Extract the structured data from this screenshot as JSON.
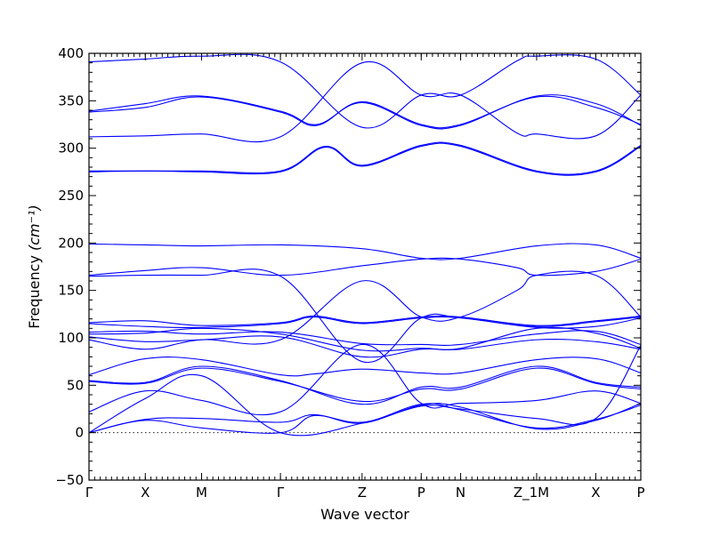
{
  "chart_data": {
    "type": "line",
    "title": "",
    "xlabel": "Wave vector",
    "ylabel_text": "Frequency",
    "ylabel_unit": "(cm⁻¹)",
    "ylim": [
      -50,
      400
    ],
    "yticks": [
      -50,
      0,
      50,
      100,
      150,
      200,
      250,
      300,
      350,
      400
    ],
    "zero_line": true,
    "grid": false,
    "line_color": "#0000ff",
    "segments": [
      {
        "from": "Γ",
        "to": "X",
        "x0": 0,
        "x1": 1
      },
      {
        "from": "X",
        "to": "M",
        "x0": 1,
        "x1": 2
      },
      {
        "from": "M",
        "to": "Γ",
        "x0": 2,
        "x1": 3.4
      },
      {
        "from": "Γ",
        "to": "Z",
        "x0": 3.4,
        "x1": 4.85
      },
      {
        "from": "Z",
        "to": "P",
        "x0": 4.85,
        "x1": 5.9
      },
      {
        "from": "P",
        "to": "N",
        "x0": 5.9,
        "x1": 6.6
      },
      {
        "from": "N",
        "to": "Z_1",
        "x0": 6.6,
        "x1": 7.6
      },
      {
        "from": "M",
        "to": "X",
        "x0": 7.95,
        "x1": 9.0
      },
      {
        "from": "X",
        "to": "P",
        "x0": 9.0,
        "x1": 9.8
      }
    ],
    "xticks": [
      {
        "label": "Γ",
        "x": 0
      },
      {
        "label": "X",
        "x": 1
      },
      {
        "label": "M",
        "x": 2
      },
      {
        "label": "Γ",
        "x": 3.4
      },
      {
        "label": "Z",
        "x": 4.85
      },
      {
        "label": "P",
        "x": 5.9
      },
      {
        "label": "N",
        "x": 6.6
      },
      {
        "label": "Z_1M",
        "x": 7.95
      },
      {
        "label": "X",
        "x": 9.0
      },
      {
        "label": "P",
        "x": 9.8
      }
    ],
    "xlim": [
      0,
      9.8
    ],
    "series": [
      {
        "points": [
          [
            0,
            391
          ],
          [
            1,
            394
          ],
          [
            2,
            397
          ],
          [
            3.4,
            391
          ],
          [
            4.85,
            322
          ],
          [
            5.9,
            356
          ],
          [
            6.6,
            356
          ],
          [
            7.6,
            392
          ],
          [
            7.95,
            397
          ],
          [
            9.0,
            394
          ],
          [
            9.8,
            356
          ]
        ]
      },
      {
        "points": [
          [
            0,
            338
          ],
          [
            1,
            343
          ],
          [
            2,
            354
          ],
          [
            3.4,
            338
          ],
          [
            4.05,
            324
          ],
          [
            4.85,
            349
          ],
          [
            5.9,
            325
          ],
          [
            6.6,
            325
          ],
          [
            7.95,
            354
          ],
          [
            9.0,
            343
          ],
          [
            9.8,
            325
          ]
        ]
      },
      {
        "points": [
          [
            0,
            339
          ],
          [
            1,
            347
          ],
          [
            2,
            355
          ],
          [
            3.4,
            339
          ],
          [
            4.05,
            325
          ],
          [
            4.85,
            348
          ],
          [
            5.9,
            324
          ],
          [
            6.6,
            324
          ],
          [
            7.95,
            355
          ],
          [
            9.0,
            347
          ],
          [
            9.8,
            324
          ]
        ]
      },
      {
        "points": [
          [
            0,
            312
          ],
          [
            1,
            313
          ],
          [
            2,
            315
          ],
          [
            3.4,
            312
          ],
          [
            4.85,
            390
          ],
          [
            5.9,
            356
          ],
          [
            6.6,
            356
          ],
          [
            7.6,
            316
          ],
          [
            7.95,
            315
          ],
          [
            9.0,
            313
          ],
          [
            9.8,
            356
          ]
        ]
      },
      {
        "points": [
          [
            0,
            276
          ],
          [
            1,
            276
          ],
          [
            2,
            276
          ],
          [
            3.4,
            276
          ],
          [
            4.2,
            302
          ],
          [
            4.85,
            282
          ],
          [
            5.9,
            303
          ],
          [
            6.6,
            303
          ],
          [
            7.95,
            276
          ],
          [
            9.0,
            276
          ],
          [
            9.8,
            303
          ]
        ]
      },
      {
        "points": [
          [
            0,
            275
          ],
          [
            1,
            276
          ],
          [
            2,
            275
          ],
          [
            3.4,
            275
          ],
          [
            4.2,
            301
          ],
          [
            4.85,
            281
          ],
          [
            5.9,
            302
          ],
          [
            6.6,
            302
          ],
          [
            7.95,
            275
          ],
          [
            9.0,
            275
          ],
          [
            9.8,
            302
          ]
        ]
      },
      {
        "points": [
          [
            0,
            199
          ],
          [
            1,
            198
          ],
          [
            2,
            197
          ],
          [
            3.4,
            198
          ],
          [
            4.85,
            194
          ],
          [
            5.9,
            184
          ],
          [
            6.6,
            184
          ],
          [
            7.95,
            197
          ],
          [
            9.0,
            198
          ],
          [
            9.8,
            184
          ]
        ]
      },
      {
        "points": [
          [
            0,
            166
          ],
          [
            1,
            171
          ],
          [
            2,
            174
          ],
          [
            3.4,
            166
          ],
          [
            4.85,
            176
          ],
          [
            5.9,
            183
          ],
          [
            6.6,
            183
          ],
          [
            7.6,
            174
          ],
          [
            7.95,
            166
          ],
          [
            9.0,
            170
          ],
          [
            9.8,
            183
          ]
        ]
      },
      {
        "points": [
          [
            0,
            165
          ],
          [
            1,
            166
          ],
          [
            2,
            166
          ],
          [
            3.4,
            165
          ],
          [
            4.85,
            75
          ],
          [
            5.9,
            121
          ],
          [
            6.6,
            121
          ],
          [
            7.95,
            112
          ],
          [
            9.0,
            117
          ],
          [
            9.8,
            122
          ]
        ]
      },
      {
        "points": [
          [
            0,
            116
          ],
          [
            1,
            118
          ],
          [
            2,
            113
          ],
          [
            3.4,
            116
          ],
          [
            4.0,
            123
          ],
          [
            4.85,
            116
          ],
          [
            5.9,
            122
          ],
          [
            6.6,
            122
          ],
          [
            7.95,
            113
          ],
          [
            9.0,
            118
          ],
          [
            9.8,
            123
          ]
        ]
      },
      {
        "points": [
          [
            0,
            115
          ],
          [
            1,
            112
          ],
          [
            2,
            111
          ],
          [
            3.4,
            115
          ],
          [
            4.0,
            122
          ],
          [
            4.85,
            115
          ],
          [
            5.9,
            121
          ],
          [
            6.6,
            121
          ],
          [
            7.95,
            111
          ],
          [
            9.0,
            112
          ],
          [
            9.8,
            121
          ]
        ]
      },
      {
        "points": [
          [
            0,
            106
          ],
          [
            1,
            107
          ],
          [
            2,
            104
          ],
          [
            3.4,
            106
          ],
          [
            4.85,
            94
          ],
          [
            5.9,
            93
          ],
          [
            6.6,
            93
          ],
          [
            7.95,
            104
          ],
          [
            9.0,
            107
          ],
          [
            9.8,
            93
          ]
        ]
      },
      {
        "points": [
          [
            0,
            104
          ],
          [
            1,
            105
          ],
          [
            2,
            110
          ],
          [
            3.4,
            104
          ],
          [
            4.85,
            87
          ],
          [
            5.9,
            89
          ],
          [
            6.6,
            89
          ],
          [
            7.95,
            110
          ],
          [
            9.0,
            105
          ],
          [
            9.8,
            89
          ]
        ]
      },
      {
        "points": [
          [
            0,
            101
          ],
          [
            1,
            96
          ],
          [
            2,
            98
          ],
          [
            3.4,
            101
          ],
          [
            4.85,
            80
          ],
          [
            5.9,
            88
          ],
          [
            6.6,
            88
          ],
          [
            7.95,
            98
          ],
          [
            9.0,
            96
          ],
          [
            9.8,
            88
          ]
        ]
      },
      {
        "points": [
          [
            0,
            98
          ],
          [
            1,
            88
          ],
          [
            2,
            98
          ],
          [
            3.4,
            98
          ],
          [
            4.85,
            160
          ],
          [
            5.9,
            122
          ],
          [
            6.6,
            122
          ],
          [
            7.6,
            150
          ],
          [
            7.95,
            166
          ],
          [
            9.0,
            166
          ],
          [
            9.8,
            122
          ]
        ]
      },
      {
        "points": [
          [
            0,
            61
          ],
          [
            1,
            78
          ],
          [
            2,
            77
          ],
          [
            3.4,
            61
          ],
          [
            4.0,
            62
          ],
          [
            4.85,
            67
          ],
          [
            5.9,
            63
          ],
          [
            6.6,
            63
          ],
          [
            7.95,
            77
          ],
          [
            9.0,
            78
          ],
          [
            9.8,
            63
          ]
        ]
      },
      {
        "points": [
          [
            0,
            55
          ],
          [
            1,
            53
          ],
          [
            2,
            70
          ],
          [
            3.4,
            55
          ],
          [
            4.85,
            30
          ],
          [
            5.9,
            48
          ],
          [
            6.6,
            48
          ],
          [
            7.95,
            70
          ],
          [
            9.0,
            53
          ],
          [
            9.8,
            48
          ]
        ]
      },
      {
        "points": [
          [
            0,
            54
          ],
          [
            1,
            52
          ],
          [
            2,
            68
          ],
          [
            3.4,
            54
          ],
          [
            4.85,
            33
          ],
          [
            5.9,
            46
          ],
          [
            6.6,
            46
          ],
          [
            7.95,
            68
          ],
          [
            9.0,
            52
          ],
          [
            9.8,
            46
          ]
        ]
      },
      {
        "points": [
          [
            0,
            22
          ],
          [
            1,
            44
          ],
          [
            2,
            34
          ],
          [
            3.4,
            22
          ],
          [
            4.85,
            93
          ],
          [
            5.9,
            31
          ],
          [
            6.6,
            31
          ],
          [
            7.95,
            34
          ],
          [
            9.0,
            44
          ],
          [
            9.8,
            31
          ]
        ]
      },
      {
        "points": [
          [
            0,
            0
          ],
          [
            1,
            36
          ],
          [
            2,
            60
          ],
          [
            3.4,
            0
          ],
          [
            4.85,
            10
          ],
          [
            5.9,
            30
          ],
          [
            6.6,
            24
          ],
          [
            7.95,
            5
          ],
          [
            9.0,
            14
          ],
          [
            9.8,
            29
          ]
        ]
      },
      {
        "points": [
          [
            0,
            0
          ],
          [
            1,
            13
          ],
          [
            2,
            5
          ],
          [
            3.4,
            0
          ],
          [
            4.0,
            18
          ],
          [
            4.85,
            10
          ],
          [
            5.9,
            29
          ],
          [
            6.6,
            27
          ],
          [
            7.95,
            4
          ],
          [
            9.0,
            13
          ],
          [
            9.8,
            31
          ]
        ]
      },
      {
        "points": [
          [
            0,
            0
          ],
          [
            1,
            14
          ],
          [
            2,
            15
          ],
          [
            3.4,
            11
          ],
          [
            4.0,
            19
          ],
          [
            4.85,
            11
          ],
          [
            5.9,
            28
          ],
          [
            6.6,
            25
          ],
          [
            7.95,
            15
          ],
          [
            9.0,
            15
          ],
          [
            9.8,
            92
          ]
        ]
      }
    ]
  }
}
